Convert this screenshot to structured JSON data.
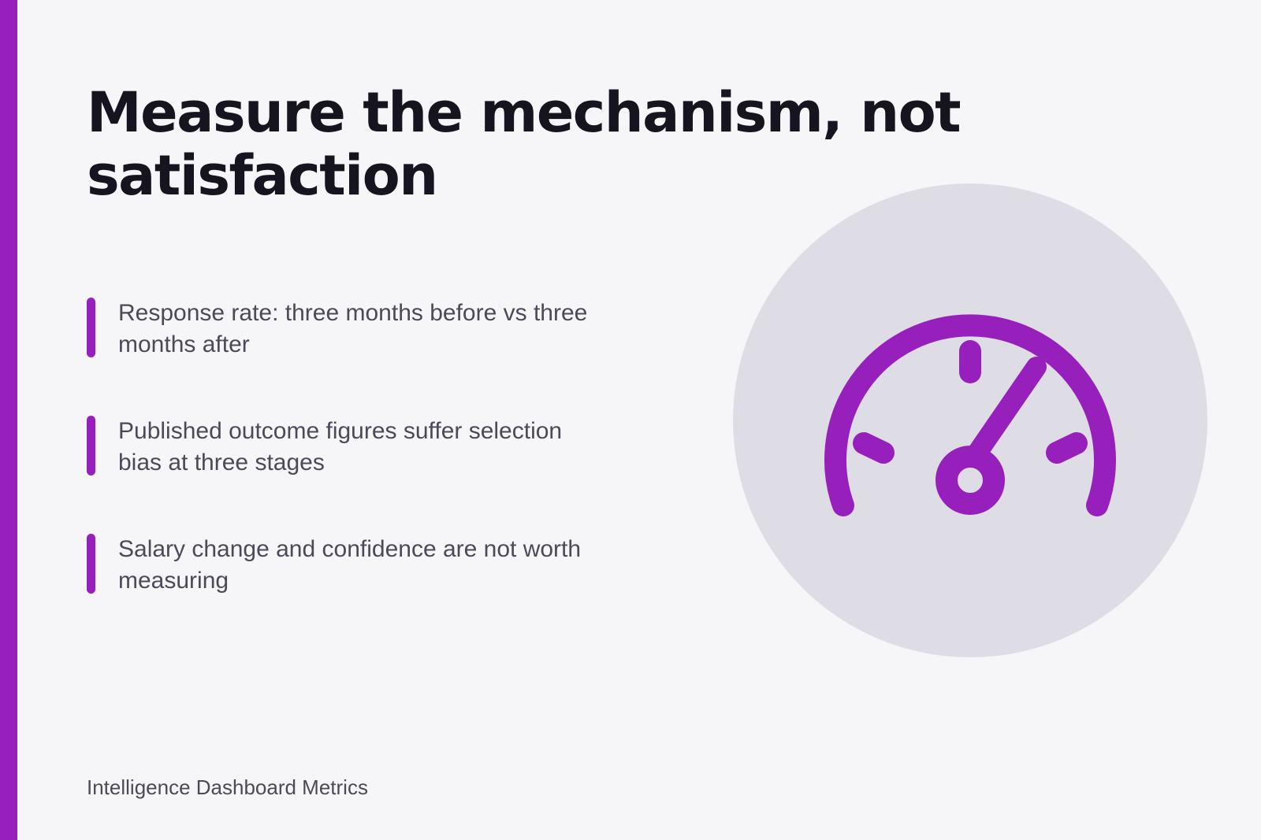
{
  "slide": {
    "title": "Measure the mechanism, not satisfaction",
    "bullets": [
      {
        "text": "Response rate: three months before vs three months after"
      },
      {
        "text": "Published outcome figures suffer selection bias at three stages"
      },
      {
        "text": "Salary change and confidence are not worth measuring"
      }
    ],
    "footer": "Intelligence Dashboard Metrics",
    "icon": "speedometer-icon"
  },
  "colors": {
    "accent": "#9720bd",
    "background": "#f6f6f9",
    "title": "#15141f",
    "body_text": "#4b4a58",
    "icon_circle": "#dedde5"
  }
}
